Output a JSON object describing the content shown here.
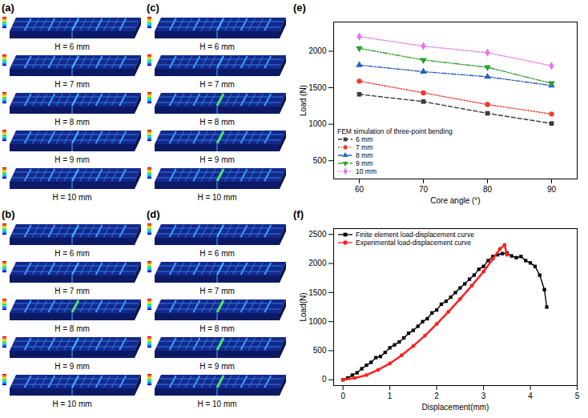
{
  "panels": [
    {
      "label": "(a)",
      "captions": [
        "H = 6 mm",
        "H = 7 mm",
        "H = 8 mm",
        "H = 9 mm",
        "H = 10 mm"
      ]
    },
    {
      "label": "(b)",
      "captions": [
        "H = 6 mm",
        "H = 7 mm",
        "H = 8 mm",
        "H = 9 mm",
        "H = 10 mm"
      ]
    },
    {
      "label": "(c)",
      "captions": [
        "H = 6 mm",
        "H = 7 mm",
        "H = 8 mm",
        "H = 9 mm",
        "H = 10 mm"
      ]
    },
    {
      "label": "(d)",
      "captions": [
        "H = 6 mm",
        "H = 7 mm",
        "H = 8 mm",
        "H = 9 mm",
        "H = 10 mm"
      ]
    }
  ],
  "chart_data": [
    {
      "label": "(e)",
      "type": "line",
      "xlabel": "Core angle (°)",
      "ylabel": "Load (N)",
      "x": [
        60,
        70,
        80,
        90
      ],
      "series": [
        {
          "name": "6 mm",
          "color": "#3c3c3c",
          "marker": "square",
          "line_style": "dashed",
          "values": [
            1410,
            1310,
            1150,
            1010
          ]
        },
        {
          "name": "7 mm",
          "color": "#ef3b2c",
          "marker": "circle",
          "line_style": "dotted",
          "values": [
            1590,
            1430,
            1270,
            1140
          ]
        },
        {
          "name": "8 mm",
          "color": "#2c5fbf",
          "marker": "triangle",
          "line_style": "dashdot",
          "values": [
            1810,
            1720,
            1650,
            1530
          ]
        },
        {
          "name": "9 mm",
          "color": "#2ca02c",
          "marker": "triangle-down",
          "line_style": "dashdotdot",
          "values": [
            2040,
            1880,
            1780,
            1560
          ]
        },
        {
          "name": "10 mm",
          "color": "#e377e8",
          "marker": "diamond",
          "line_style": "dotted",
          "values": [
            2200,
            2070,
            1980,
            1800
          ]
        }
      ],
      "legend": "lower left",
      "legend_title": "FEM simulation of three-point bending",
      "xlim": [
        56,
        94
      ],
      "xticks": [
        60,
        70,
        80,
        90
      ],
      "ylim": [
        250,
        2400
      ],
      "yticks": [
        500,
        1000,
        1500,
        2000
      ],
      "grid": false
    },
    {
      "label": "(f)",
      "type": "line",
      "xlabel": "Displacement(mm)",
      "ylabel": "Load(N)",
      "series": [
        {
          "name": "Finite element load-displacement curve",
          "color": "#000000",
          "marker": "square",
          "line_style": "solid",
          "x": [
            0,
            0.1,
            0.2,
            0.3,
            0.4,
            0.5,
            0.6,
            0.7,
            0.8,
            0.9,
            1.0,
            1.1,
            1.2,
            1.3,
            1.4,
            1.5,
            1.6,
            1.7,
            1.8,
            1.9,
            2.0,
            2.1,
            2.2,
            2.3,
            2.4,
            2.5,
            2.6,
            2.7,
            2.8,
            2.9,
            3.0,
            3.1,
            3.2,
            3.3,
            3.4,
            3.5,
            3.6,
            3.7,
            3.8,
            3.9,
            4.0,
            4.1,
            4.2,
            4.3,
            4.35
          ],
          "values": [
            0,
            30,
            80,
            120,
            190,
            250,
            300,
            380,
            400,
            470,
            550,
            600,
            650,
            720,
            800,
            850,
            920,
            1000,
            1050,
            1150,
            1200,
            1300,
            1350,
            1420,
            1500,
            1580,
            1650,
            1730,
            1800,
            1900,
            1950,
            2050,
            2120,
            2150,
            2170,
            2180,
            2130,
            2100,
            2120,
            2050,
            2010,
            1950,
            1800,
            1550,
            1250
          ]
        },
        {
          "name": "Experimental load-displacement curve",
          "color": "#ff2020",
          "marker": "circle",
          "line_style": "solid",
          "x": [
            0,
            0.25,
            0.5,
            0.75,
            1.0,
            1.25,
            1.5,
            1.75,
            2.0,
            2.25,
            2.5,
            2.75,
            3.0,
            3.2,
            3.35,
            3.45,
            3.5
          ],
          "values": [
            0,
            30,
            80,
            170,
            280,
            420,
            580,
            760,
            960,
            1170,
            1390,
            1620,
            1860,
            2080,
            2250,
            2320,
            2150
          ]
        }
      ],
      "legend": "upper left",
      "xlim": [
        -0.2,
        5
      ],
      "xticks": [
        0,
        1,
        2,
        3,
        4,
        5
      ],
      "ylim": [
        -100,
        2600
      ],
      "yticks": [
        0,
        500,
        1000,
        1500,
        2000,
        2500
      ],
      "grid": false
    }
  ]
}
